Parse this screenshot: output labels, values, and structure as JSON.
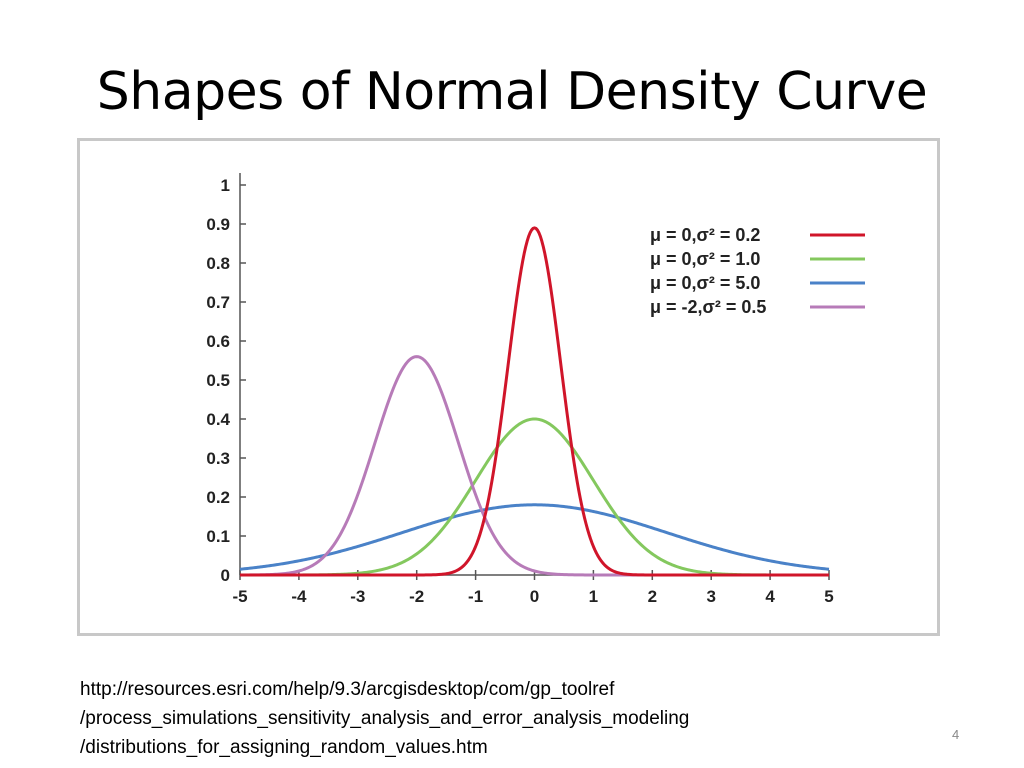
{
  "slide": {
    "title": "Shapes of Normal Density Curve",
    "source_lines": [
      "http://resources.esri.com/help/9.3/arcgisdesktop/com/gp_toolref",
      "/process_simulations_sensitivity_analysis_and_error_analysis_modeling",
      "/distributions_for_assigning_random_values.htm"
    ],
    "page_number": "4"
  },
  "chart_data": {
    "type": "line",
    "title": "",
    "xlabel": "",
    "ylabel": "",
    "xlim": [
      -5,
      5
    ],
    "ylim": [
      0,
      1
    ],
    "x_ticks": [
      -5,
      -4,
      -3,
      -2,
      -1,
      0,
      1,
      2,
      3,
      4,
      5
    ],
    "y_ticks": [
      "0",
      "0.1",
      "0.2",
      "0.3",
      "0.4",
      "0.5",
      "0.6",
      "0.7",
      "0.8",
      "0.9",
      "1"
    ],
    "legend_position": "top-right",
    "series": [
      {
        "name": "μ = 0,σ² = 0.2",
        "mu": 0,
        "variance": 0.2,
        "color": "#d0152a",
        "peak": 0.89
      },
      {
        "name": "μ = 0,σ² = 1.0",
        "mu": 0,
        "variance": 1.0,
        "color": "#84c85e",
        "peak": 0.4
      },
      {
        "name": "μ = 0,σ² = 5.0",
        "mu": 0,
        "variance": 5.0,
        "color": "#4a82c8",
        "peak": 0.18
      },
      {
        "name": "μ = -2,σ² = 0.5",
        "mu": -2,
        "variance": 0.5,
        "color": "#b77bb8",
        "peak": 0.56
      }
    ]
  }
}
